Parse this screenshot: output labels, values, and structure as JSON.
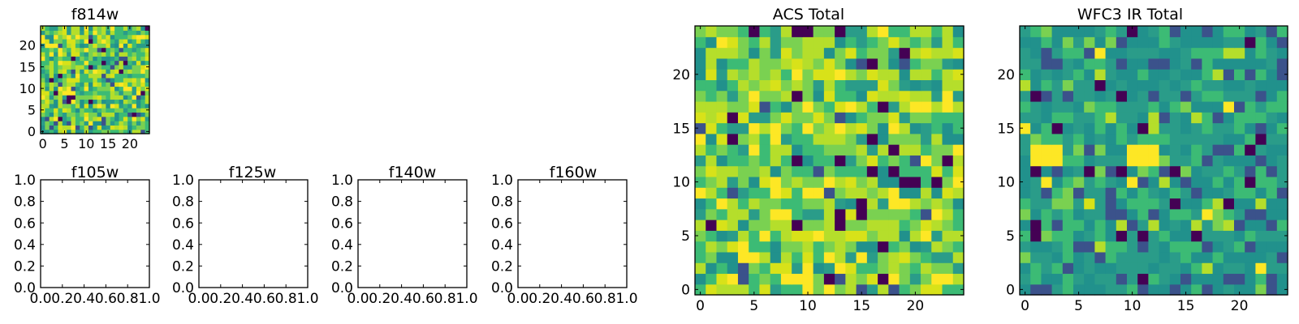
{
  "figure": {
    "palette": [
      "#440154",
      "#3b528b",
      "#21918c",
      "#2a9c89",
      "#3cbb75",
      "#7ad151",
      "#b5de2b",
      "#d8e219",
      "#fde725"
    ]
  },
  "chart_data": [
    {
      "type": "heatmap",
      "title": "f814w",
      "xlabel": "",
      "ylabel": "",
      "xlim": [
        -0.5,
        24.5
      ],
      "ylim": [
        -0.5,
        24.5
      ],
      "xticks": [
        0,
        5,
        10,
        15,
        20
      ],
      "yticks": [
        0,
        5,
        10,
        15,
        20
      ],
      "xtick_labels": [
        "0",
        "5",
        "10",
        "15",
        "20"
      ],
      "ytick_labels": [
        "0",
        "5",
        "10",
        "15",
        "20"
      ],
      "grid_size": 25,
      "seed": 11,
      "palette_weights": [
        0.03,
        0.04,
        0.12,
        0.1,
        0.22,
        0.16,
        0.17,
        0.1,
        0.06
      ]
    },
    {
      "type": "empty",
      "title": "f105w",
      "xlim": [
        0,
        1
      ],
      "ylim": [
        0,
        1
      ],
      "xtick_labels": [
        "0.0",
        "0.2",
        "0.4",
        "0.6",
        "0.8",
        "1.0"
      ],
      "ytick_labels": [
        "0.0",
        "0.2",
        "0.4",
        "0.6",
        "0.8",
        "1.0"
      ]
    },
    {
      "type": "empty",
      "title": "f125w",
      "xlim": [
        0,
        1
      ],
      "ylim": [
        0,
        1
      ],
      "xtick_labels": [
        "0.0",
        "0.2",
        "0.4",
        "0.6",
        "0.8",
        "1.0"
      ],
      "ytick_labels": [
        "0.0",
        "0.2",
        "0.4",
        "0.6",
        "0.8",
        "1.0"
      ]
    },
    {
      "type": "empty",
      "title": "f140w",
      "xlim": [
        0,
        1
      ],
      "ylim": [
        0,
        1
      ],
      "xtick_labels": [
        "0.0",
        "0.2",
        "0.4",
        "0.6",
        "0.8",
        "1.0"
      ],
      "ytick_labels": [
        "0.0",
        "0.2",
        "0.4",
        "0.6",
        "0.8",
        "1.0"
      ]
    },
    {
      "type": "empty",
      "title": "f160w",
      "xlim": [
        0,
        1
      ],
      "ylim": [
        0,
        1
      ],
      "xtick_labels": [
        "0.0",
        "0.2",
        "0.4",
        "0.6",
        "0.8",
        "1.0"
      ],
      "ytick_labels": [
        "0.0",
        "0.2",
        "0.4",
        "0.6",
        "0.8",
        "1.0"
      ]
    },
    {
      "type": "heatmap",
      "title": "ACS Total",
      "xlabel": "",
      "ylabel": "",
      "xlim": [
        -0.5,
        24.5
      ],
      "ylim": [
        -0.5,
        24.5
      ],
      "xticks": [
        0,
        5,
        10,
        15,
        20
      ],
      "yticks": [
        0,
        5,
        10,
        15,
        20
      ],
      "xtick_labels": [
        "0",
        "5",
        "10",
        "15",
        "20"
      ],
      "ytick_labels": [
        "0",
        "5",
        "10",
        "15",
        "20"
      ],
      "grid_size": 25,
      "seed": 29,
      "palette_weights": [
        0.025,
        0.02,
        0.08,
        0.1,
        0.2,
        0.2,
        0.2,
        0.1,
        0.075
      ],
      "highlight_cells": [
        {
          "col": 9,
          "row": 24,
          "level": 0
        },
        {
          "col": 10,
          "row": 24,
          "level": 0
        },
        {
          "col": 13,
          "row": 24,
          "level": 0
        },
        {
          "col": 9,
          "row": 18,
          "level": 0
        },
        {
          "col": 3,
          "row": 16,
          "level": 0
        },
        {
          "col": 18,
          "row": 11,
          "level": 0
        },
        {
          "col": 20,
          "row": 10,
          "level": 0
        },
        {
          "col": 22,
          "row": 10,
          "level": 0
        },
        {
          "col": 15,
          "row": 8,
          "level": 0
        },
        {
          "col": 1,
          "row": 6,
          "level": 0
        },
        {
          "col": 13,
          "row": 6,
          "level": 0
        },
        {
          "col": 17,
          "row": 1,
          "level": 0
        },
        {
          "col": 20,
          "row": 17,
          "level": 8
        },
        {
          "col": 21,
          "row": 17,
          "level": 8
        },
        {
          "col": 7,
          "row": 7,
          "level": 8
        },
        {
          "col": 8,
          "row": 7,
          "level": 8
        },
        {
          "col": 9,
          "row": 1,
          "level": 8
        },
        {
          "col": 10,
          "row": 1,
          "level": 8
        }
      ]
    },
    {
      "type": "heatmap",
      "title": "WFC3 IR Total",
      "xlabel": "",
      "ylabel": "",
      "xlim": [
        -0.5,
        24.5
      ],
      "ylim": [
        -0.5,
        24.5
      ],
      "xticks": [
        0,
        5,
        10,
        15,
        20
      ],
      "yticks": [
        0,
        5,
        10,
        15,
        20
      ],
      "xtick_labels": [
        "0",
        "5",
        "10",
        "15",
        "20"
      ],
      "ytick_labels": [
        "0",
        "5",
        "10",
        "15",
        "20"
      ],
      "grid_size": 25,
      "seed": 53,
      "palette_weights": [
        0.02,
        0.1,
        0.3,
        0.28,
        0.2,
        0.05,
        0.03,
        0.01,
        0.01
      ],
      "highlight_cells": [
        {
          "col": 1,
          "row": 13,
          "level": 8
        },
        {
          "col": 2,
          "row": 13,
          "level": 8
        },
        {
          "col": 3,
          "row": 13,
          "level": 8
        },
        {
          "col": 1,
          "row": 12,
          "level": 8
        },
        {
          "col": 2,
          "row": 12,
          "level": 8
        },
        {
          "col": 3,
          "row": 12,
          "level": 8
        },
        {
          "col": 10,
          "row": 13,
          "level": 8
        },
        {
          "col": 11,
          "row": 13,
          "level": 8
        },
        {
          "col": 12,
          "row": 13,
          "level": 8
        },
        {
          "col": 10,
          "row": 12,
          "level": 8
        },
        {
          "col": 11,
          "row": 12,
          "level": 8
        },
        {
          "col": 12,
          "row": 12,
          "level": 8
        },
        {
          "col": 10,
          "row": 24,
          "level": 0
        },
        {
          "col": 7,
          "row": 19,
          "level": 0
        },
        {
          "col": 1,
          "row": 18,
          "level": 0
        },
        {
          "col": 3,
          "row": 15,
          "level": 0
        },
        {
          "col": 11,
          "row": 15,
          "level": 0
        },
        {
          "col": 1,
          "row": 11,
          "level": 0
        },
        {
          "col": 6,
          "row": 11,
          "level": 0
        },
        {
          "col": 9,
          "row": 11,
          "level": 0
        },
        {
          "col": 21,
          "row": 10,
          "level": 0
        },
        {
          "col": 1,
          "row": 6,
          "level": 0
        },
        {
          "col": 1,
          "row": 5,
          "level": 0
        },
        {
          "col": 9,
          "row": 5,
          "level": 0
        },
        {
          "col": 14,
          "row": 11,
          "level": 0
        },
        {
          "col": 16,
          "row": 5,
          "level": 0
        }
      ]
    }
  ]
}
